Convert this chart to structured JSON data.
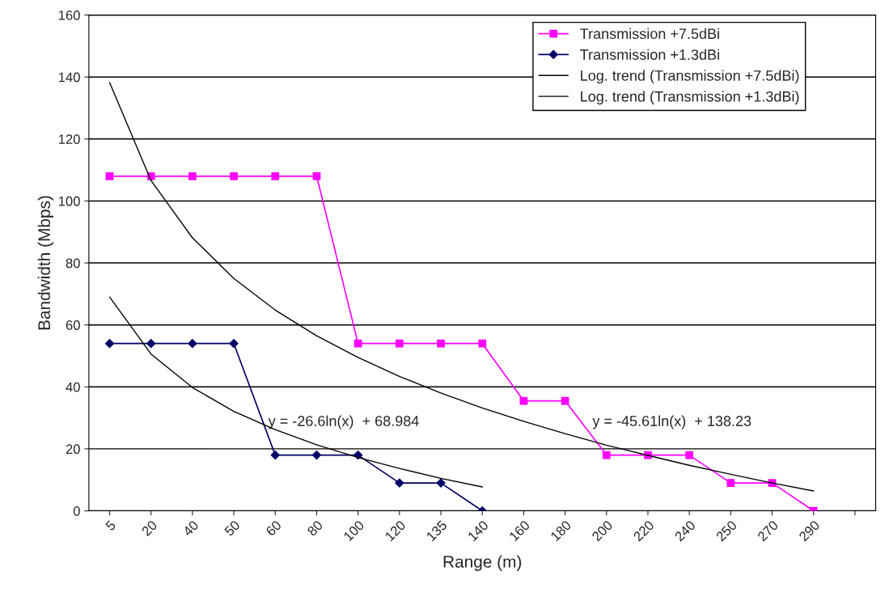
{
  "chart_data": {
    "type": "line",
    "xlabel": "Range (m)",
    "ylabel": "Bandwidth (Mbps)",
    "categories": [
      "5",
      "20",
      "40",
      "50",
      "60",
      "80",
      "100",
      "120",
      "135",
      "140",
      "160",
      "180",
      "200",
      "220",
      "240",
      "250",
      "270",
      "290",
      null
    ],
    "series": [
      {
        "name": "Transmission +7.5dBi",
        "color": "#ff00ff",
        "marker": "square",
        "values": [
          108,
          108,
          108,
          108,
          108,
          108,
          54,
          54,
          54,
          54,
          35.5,
          35.5,
          18,
          18,
          18,
          9,
          9,
          0,
          null
        ]
      },
      {
        "name": "Transmission +1.3dBi",
        "color": "#000066",
        "marker": "diamond",
        "values": [
          54,
          54,
          54,
          54,
          18,
          18,
          18,
          9,
          9,
          0,
          null,
          null,
          null,
          null,
          null,
          null,
          null,
          null,
          null
        ]
      },
      {
        "name": "Log. trend (Transmission +7.5dBi)",
        "color": "#000000",
        "marker": "none",
        "values": [
          138.2,
          106.6,
          88.1,
          75.0,
          64.8,
          56.5,
          49.5,
          43.4,
          38.0,
          33.2,
          28.9,
          24.9,
          21.2,
          17.9,
          14.7,
          11.8,
          9.0,
          6.4,
          null
        ]
      },
      {
        "name": "Log. trend (Transmission +1.3dBi)",
        "color": "#000000",
        "marker": "none",
        "values": [
          69.0,
          50.6,
          39.8,
          32.1,
          26.2,
          21.3,
          17.2,
          13.7,
          10.5,
          7.7,
          null,
          null,
          null,
          null,
          null,
          null,
          null,
          null,
          null
        ]
      }
    ],
    "ylim": [
      0,
      160
    ],
    "yticks": [
      0,
      20,
      40,
      60,
      80,
      100,
      120,
      140,
      160
    ],
    "grid": "y",
    "legend": "top right",
    "annotations": [
      "y = -26.6ln(x)  + 68.984",
      "y = -45.61ln(x)  + 138.23"
    ]
  }
}
